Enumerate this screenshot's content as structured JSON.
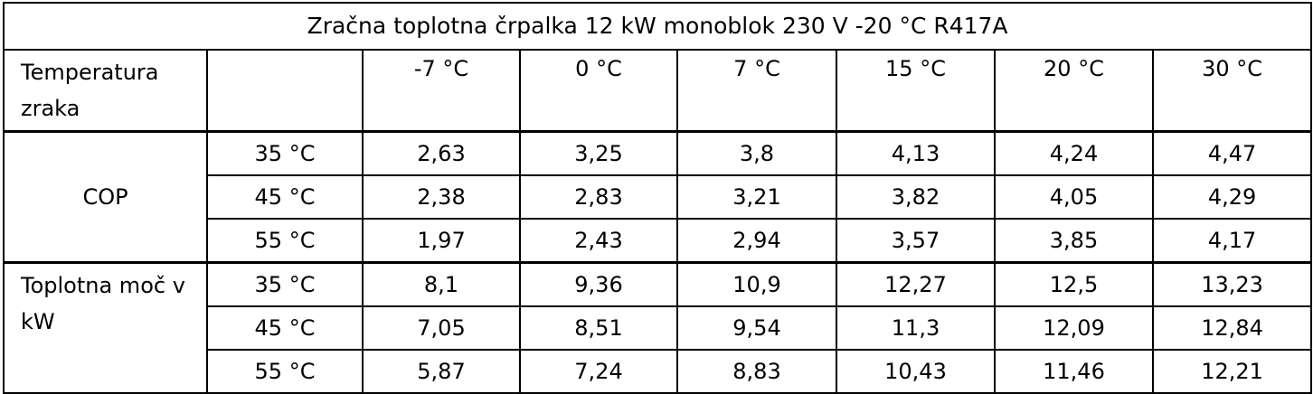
{
  "title": "Zračna toplotna črpalka 12 kW monoblok 230 V -20 °C R417A",
  "header": {
    "row_label": "Temperatura zraka",
    "sub_label": "",
    "columns": [
      "-7 °C",
      "0 °C",
      "7 °C",
      "15 °C",
      "20 °C",
      "30 °C"
    ]
  },
  "groups": [
    {
      "label": "COP",
      "rows": [
        {
          "temp": "35 °C",
          "values": [
            "2,63",
            "3,25",
            "3,8",
            "4,13",
            "4,24",
            "4,47"
          ]
        },
        {
          "temp": "45 °C",
          "values": [
            "2,38",
            "2,83",
            "3,21",
            "3,82",
            "4,05",
            "4,29"
          ]
        },
        {
          "temp": "55 °C",
          "values": [
            "1,97",
            "2,43",
            "2,94",
            "3,57",
            "3,85",
            "4,17"
          ]
        }
      ]
    },
    {
      "label": "Toplotna moč v kW",
      "rows": [
        {
          "temp": "35 °C",
          "values": [
            "8,1",
            "9,36",
            "10,9",
            "12,27",
            "12,5",
            "13,23"
          ]
        },
        {
          "temp": "45 °C",
          "values": [
            "7,05",
            "8,51",
            "9,54",
            "11,3",
            "12,09",
            "12,84"
          ]
        },
        {
          "temp": "55 °C",
          "values": [
            "5,87",
            "7,24",
            "8,83",
            "10,43",
            "11,46",
            "12,21"
          ]
        }
      ]
    }
  ]
}
